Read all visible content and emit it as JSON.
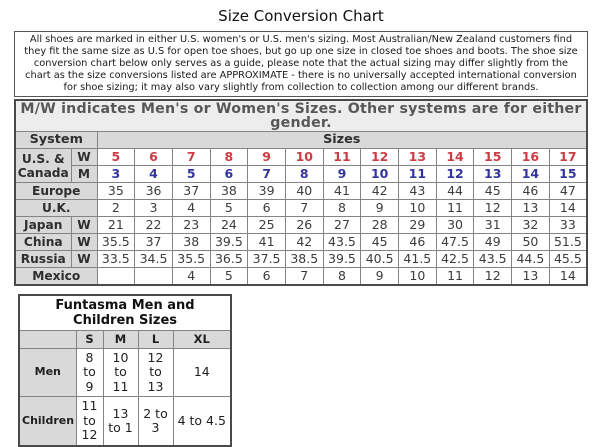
{
  "page": {
    "title": "Size Conversion Chart"
  },
  "intro_box": {
    "text": "All shoes are marked in either U.S. women's or U.S. men's sizing. Most Australian/New Zealand customers find they fit the same size as U.S for open toe shoes, but go up one size in closed toe shoes and boots. The shoe size conversion chart below only serves as a guide, please note that the actual sizing may differ slightly from the chart as the size conversions listed are APPROXIMATE - there is no universally accepted international conversion for shoe sizing; it may also vary slightly from collection to collection among our different brands."
  },
  "note_bar": {
    "text": "M/W indicates Men's or Women's Sizes. Other systems are for either gender."
  },
  "colors": {
    "women_red": "#cb3d44",
    "men_blue": "#34349e",
    "header_gray": "#d9d9d9",
    "note_gray": "#ededed"
  },
  "conversion_table": {
    "system_header": "System",
    "sizes_header": "Sizes",
    "rows": [
      {
        "label": "U.S. & Canada",
        "label_rowspan": 2,
        "gender": "W",
        "style": "women",
        "values": [
          "5",
          "6",
          "7",
          "8",
          "9",
          "10",
          "11",
          "12",
          "13",
          "14",
          "15",
          "16",
          "17"
        ]
      },
      {
        "label": null,
        "gender": "M",
        "style": "men",
        "values": [
          "3",
          "4",
          "5",
          "6",
          "7",
          "8",
          "9",
          "10",
          "11",
          "12",
          "13",
          "14",
          "15"
        ]
      },
      {
        "label": "Europe",
        "label_colspan": 2,
        "gender": null,
        "style": "plain",
        "values": [
          "35",
          "36",
          "37",
          "38",
          "39",
          "40",
          "41",
          "42",
          "43",
          "44",
          "45",
          "46",
          "47"
        ]
      },
      {
        "label": "U.K.",
        "label_colspan": 2,
        "gender": null,
        "style": "plain",
        "values": [
          "2",
          "3",
          "4",
          "5",
          "6",
          "7",
          "8",
          "9",
          "10",
          "11",
          "12",
          "13",
          "14"
        ]
      },
      {
        "label": "Japan",
        "gender": "W",
        "style": "plain",
        "values": [
          "21",
          "22",
          "23",
          "24",
          "25",
          "26",
          "27",
          "28",
          "29",
          "30",
          "31",
          "32",
          "33"
        ]
      },
      {
        "label": "China",
        "gender": "W",
        "style": "plain",
        "values": [
          "35.5",
          "37",
          "38",
          "39.5",
          "41",
          "42",
          "43.5",
          "45",
          "46",
          "47.5",
          "49",
          "50",
          "51.5"
        ]
      },
      {
        "label": "Russia",
        "gender": "W",
        "style": "plain",
        "values": [
          "33.5",
          "34.5",
          "35.5",
          "36.5",
          "37.5",
          "38.5",
          "39.5",
          "40.5",
          "41.5",
          "42.5",
          "43.5",
          "44.5",
          "45.5"
        ]
      },
      {
        "label": "Mexico",
        "label_colspan": 2,
        "gender": null,
        "style": "plain",
        "values": [
          "",
          "",
          "4",
          "5",
          "6",
          "7",
          "8",
          "9",
          "10",
          "11",
          "12",
          "13",
          "14"
        ]
      }
    ]
  },
  "funtasma_table": {
    "title": "Funtasma Men and Children Sizes",
    "col_headers": [
      "",
      "S",
      "M",
      "L",
      "XL"
    ],
    "rows": [
      {
        "label": "Men",
        "values": [
          "8 to 9",
          "10 to 11",
          "12 to 13",
          "14"
        ]
      },
      {
        "label": "Children",
        "values": [
          "11 to 12",
          "13 to 1",
          "2 to 3",
          "4 to 4.5"
        ]
      }
    ]
  }
}
